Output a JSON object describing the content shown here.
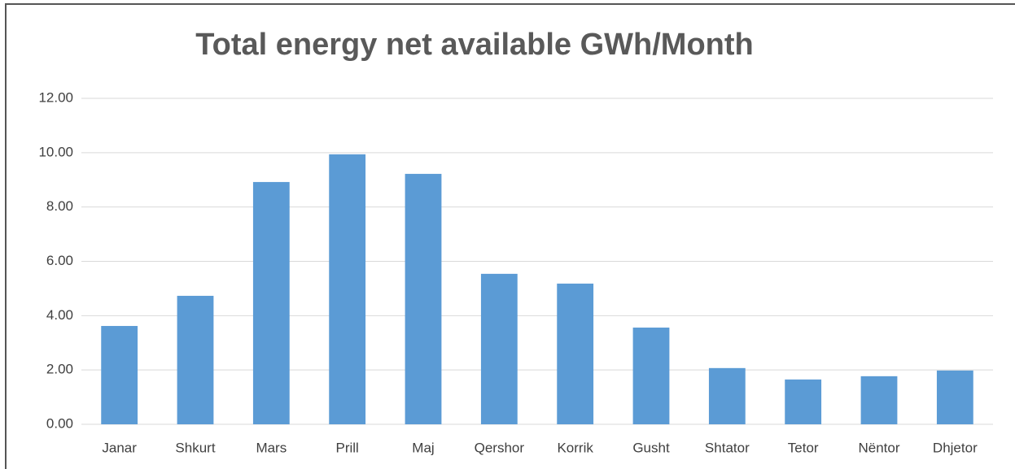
{
  "chart_data": {
    "type": "bar",
    "title": "Total energy net available GWh/Month",
    "categories": [
      "Janar",
      "Shkurt",
      "Mars",
      "Prill",
      "Maj",
      "Qershor",
      "Korrik",
      "Gusht",
      "Shtator",
      "Tetor",
      "Nëntor",
      "Dhjetor"
    ],
    "values": [
      3.62,
      4.73,
      8.92,
      9.94,
      9.22,
      5.54,
      5.18,
      3.56,
      2.07,
      1.65,
      1.77,
      1.98
    ],
    "color": "#5b9bd5",
    "ylim": [
      0,
      12
    ],
    "yticks": [
      {
        "value": 0,
        "label": "0.00"
      },
      {
        "value": 2,
        "label": "2.00"
      },
      {
        "value": 4,
        "label": "4.00"
      },
      {
        "value": 6,
        "label": "6.00"
      },
      {
        "value": 8,
        "label": "8.00"
      },
      {
        "value": 10,
        "label": "10.00"
      },
      {
        "value": 12,
        "label": "12.00"
      }
    ],
    "grid": true
  }
}
